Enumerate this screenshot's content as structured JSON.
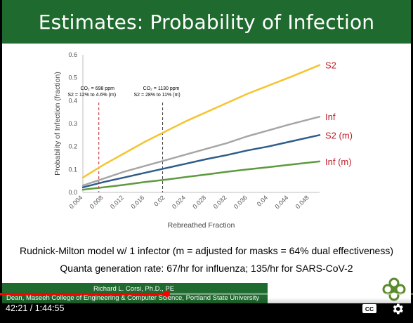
{
  "slide": {
    "title": "Estimates: Probability of Infection",
    "subtitle_line1": "Rudnick-Milton model w/ 1 infector (m = adjusted for masks = 64% dual effectiveness)",
    "subtitle_line2": "Quanta generation rate: 67/hr for influenza;  135/hr for SARS-CoV-2",
    "credit_name": "Richard L. Corsi, Ph.D., PE",
    "credit_affiliation": "Dean, Maseeh College of Engineering & Computer Science, Portland State University",
    "logo_icon": "psu-leaf-logo-icon",
    "brand_color": "#1f6a2e"
  },
  "chart_data": {
    "type": "line",
    "xlabel": "Rebreathed Fraction",
    "ylabel": "Probability of Infection (fraction)",
    "xlim": [
      0.004,
      0.05
    ],
    "ylim": [
      0,
      0.6
    ],
    "x_ticks": [
      "0.004",
      "0.008",
      "0.012",
      "0.016",
      "0.02",
      "0.024",
      "0.028",
      "0.032",
      "0.036",
      "0.04",
      "0.044",
      "0.048"
    ],
    "y_ticks": [
      "0.0",
      "0.1",
      "0.2",
      "0.3",
      "0.4",
      "0.5",
      "0.6"
    ],
    "grid": false,
    "legend": "inline labels at right end of lines",
    "series": [
      {
        "name": "S2",
        "color": "#f5c430",
        "x": [
          0.004,
          0.008,
          0.012,
          0.016,
          0.02,
          0.024,
          0.028,
          0.032,
          0.036,
          0.04,
          0.044,
          0.05
        ],
        "values": [
          0.065,
          0.12,
          0.17,
          0.22,
          0.265,
          0.31,
          0.35,
          0.39,
          0.43,
          0.465,
          0.5,
          0.555
        ]
      },
      {
        "name": "Inf",
        "color": "#a6a6a6",
        "x": [
          0.004,
          0.008,
          0.012,
          0.016,
          0.02,
          0.024,
          0.028,
          0.032,
          0.036,
          0.04,
          0.044,
          0.05
        ],
        "values": [
          0.03,
          0.06,
          0.09,
          0.115,
          0.14,
          0.165,
          0.19,
          0.215,
          0.245,
          0.27,
          0.295,
          0.33
        ]
      },
      {
        "name": "S2 (m)",
        "color": "#2e5c8a",
        "x": [
          0.004,
          0.008,
          0.012,
          0.016,
          0.02,
          0.024,
          0.028,
          0.032,
          0.036,
          0.04,
          0.044,
          0.05
        ],
        "values": [
          0.022,
          0.045,
          0.065,
          0.085,
          0.105,
          0.125,
          0.145,
          0.163,
          0.183,
          0.2,
          0.22,
          0.25
        ]
      },
      {
        "name": "Inf (m)",
        "color": "#5e9a3d",
        "x": [
          0.004,
          0.008,
          0.012,
          0.016,
          0.02,
          0.024,
          0.028,
          0.032,
          0.036,
          0.04,
          0.044,
          0.05
        ],
        "values": [
          0.012,
          0.022,
          0.033,
          0.045,
          0.055,
          0.067,
          0.078,
          0.09,
          0.1,
          0.11,
          0.12,
          0.135
        ]
      }
    ],
    "label_color": "#c0202a",
    "annotations": [
      {
        "x": 0.0071,
        "line1": "CO₂ = 698 ppm",
        "line2": "S2 = 12% to 4.6% (m)",
        "line_color": "#c0202a"
      },
      {
        "x": 0.0195,
        "line1": "CO₂ = 1130 ppm",
        "line2": "S2 = 28% to 11% (m)",
        "line_color": "#333333"
      }
    ]
  },
  "player": {
    "time_display": "42:21 / 1:44:55",
    "progress_fraction": 0.4036,
    "cc_label": "CC",
    "settings_icon": "gear-icon"
  }
}
